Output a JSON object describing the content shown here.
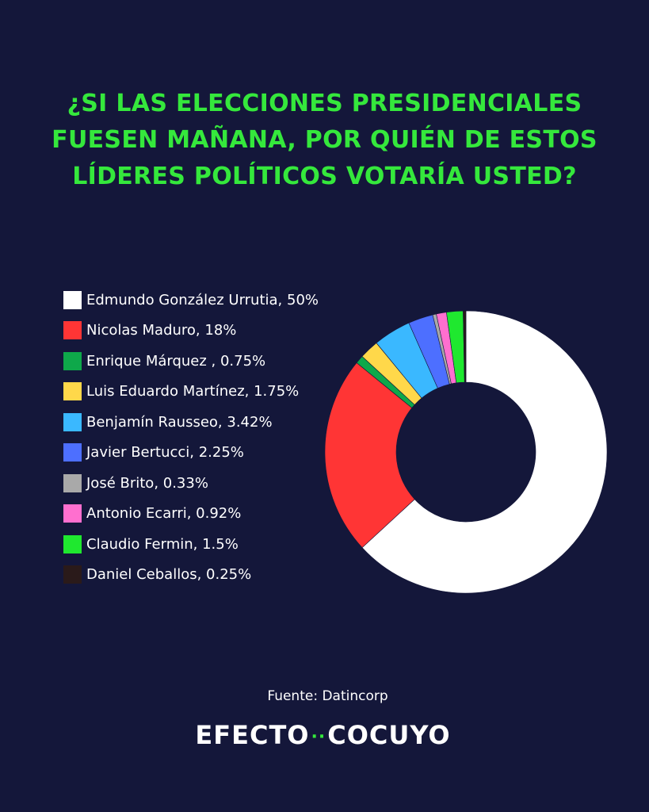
{
  "chart_data": {
    "type": "pie",
    "title": "¿SI LAS ELECCIONES PRESIDENCIALES FUESEN MAÑANA, POR QUIÉN DE ESTOS LÍDERES POLÍTICOS VOTARÍA USTED?",
    "legend_position": "left",
    "series": [
      {
        "name": "Edmundo González Urrutia, 50%",
        "value": 50,
        "color": "#ffffff"
      },
      {
        "name": "Nicolas Maduro, 18%",
        "value": 18,
        "color": "#ff3535"
      },
      {
        "name": "Enrique Márquez , 0.75%",
        "value": 0.75,
        "color": "#0ea84a"
      },
      {
        "name": "Luis Eduardo Martínez, 1.75%",
        "value": 1.75,
        "color": "#ffd84a"
      },
      {
        "name": "Benjamín Rausseo, 3.42%",
        "value": 3.42,
        "color": "#3ab8ff"
      },
      {
        "name": "Javier Bertucci, 2.25%",
        "value": 2.25,
        "color": "#4d6fff"
      },
      {
        "name": "José Brito, 0.33%",
        "value": 0.33,
        "color": "#a9a9a9"
      },
      {
        "name": "Antonio Ecarri, 0.92%",
        "value": 0.92,
        "color": "#ff6fcf"
      },
      {
        "name": "Claudio Fermin, 1.5%",
        "value": 1.5,
        "color": "#1fe82f"
      },
      {
        "name": "Daniel Ceballos, 0.25%",
        "value": 0.25,
        "color": "#2a1a1a"
      }
    ]
  },
  "footer": {
    "source": "Fuente: Datincorp",
    "brand_left": "EFECTO",
    "brand_dots": "··",
    "brand_right": "COCUYO"
  }
}
